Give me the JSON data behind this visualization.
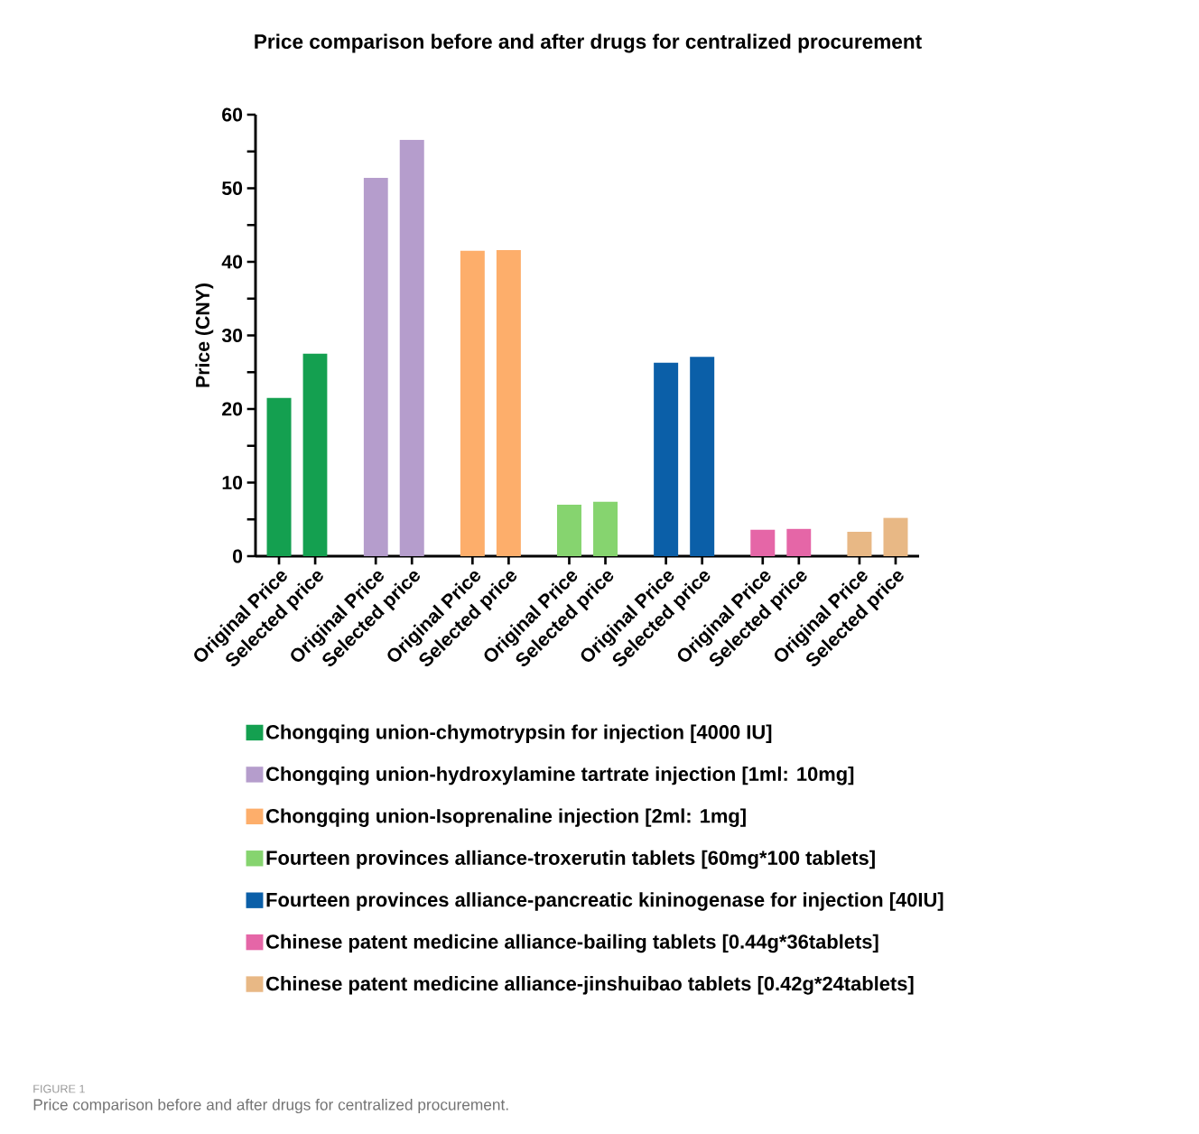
{
  "chart_data": {
    "type": "bar",
    "title": "Price comparison before and after drugs for centralized procurement",
    "ylabel": "Price (CNY)",
    "categories": [
      "Original Price",
      "Selected price",
      "Original Price",
      "Selected price",
      "Original Price",
      "Selected price",
      "Original Price",
      "Selected price",
      "Original Price",
      "Selected price",
      "Original Price",
      "Selected price",
      "Original Price",
      "Selected price"
    ],
    "series": [
      {
        "name": "Chongqing union-chymotrypsin for injection [4000 IU]",
        "color": "#14a050",
        "values": [
          21.5,
          27.5,
          null,
          null,
          null,
          null,
          null,
          null,
          null,
          null,
          null,
          null,
          null,
          null
        ]
      },
      {
        "name": "Chongqing union-hydroxylamine tartrate injection [1ml: 10mg]",
        "color": "#b59dcc",
        "values": [
          null,
          null,
          51.4,
          56.6,
          null,
          null,
          null,
          null,
          null,
          null,
          null,
          null,
          null,
          null
        ]
      },
      {
        "name": "Chongqing union-Isoprenaline injection [2ml: 1mg]",
        "color": "#fdae6b",
        "values": [
          null,
          null,
          null,
          null,
          41.5,
          41.6,
          null,
          null,
          null,
          null,
          null,
          null,
          null,
          null
        ]
      },
      {
        "name": "Fourteen provinces alliance-troxerutin tablets [60mg*100 tablets]",
        "color": "#86d46f",
        "values": [
          null,
          null,
          null,
          null,
          null,
          null,
          7.0,
          7.4,
          null,
          null,
          null,
          null,
          null,
          null
        ]
      },
      {
        "name": "Fourteen provinces alliance-pancreatic kininogenase for injection [40IU]",
        "color": "#0b5fa8",
        "values": [
          null,
          null,
          null,
          null,
          null,
          null,
          null,
          null,
          26.3,
          27.1,
          null,
          null,
          null,
          null
        ]
      },
      {
        "name": "Chinese patent medicine alliance-bailing tablets [0.44g*36tablets]",
        "color": "#e566a7",
        "values": [
          null,
          null,
          null,
          null,
          null,
          null,
          null,
          null,
          null,
          null,
          3.6,
          3.7,
          null,
          null
        ]
      },
      {
        "name": "Chinese patent medicine alliance-jinshuibao tablets [0.42g*24tablets]",
        "color": "#e8b885",
        "values": [
          null,
          null,
          null,
          null,
          null,
          null,
          null,
          null,
          null,
          null,
          null,
          null,
          3.3,
          5.2
        ]
      }
    ],
    "ylim": [
      0,
      60
    ],
    "yticks": [
      0,
      {
        "value": 5,
        "label": null
      },
      10,
      {
        "value": 15,
        "label": null
      },
      20,
      {
        "value": 25,
        "label": null
      },
      30,
      {
        "value": 35,
        "label": null
      },
      40,
      {
        "value": 45,
        "label": null
      },
      50,
      {
        "value": 55,
        "label": null
      },
      60
    ],
    "legend": "bottom",
    "annotations": [
      "FIGURE 1",
      "Price comparison before and after drugs for centralized procurement."
    ]
  }
}
